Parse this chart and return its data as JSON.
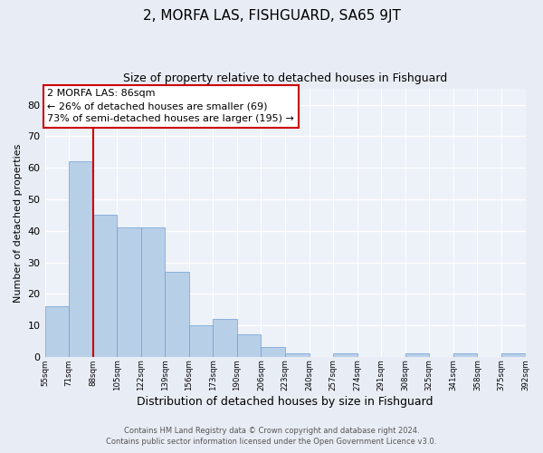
{
  "title": "2, MORFA LAS, FISHGUARD, SA65 9JT",
  "subtitle": "Size of property relative to detached houses in Fishguard",
  "xlabel": "Distribution of detached houses by size in Fishguard",
  "ylabel": "Number of detached properties",
  "bar_values": [
    16,
    62,
    45,
    41,
    41,
    27,
    10,
    12,
    7,
    3,
    1,
    0,
    1,
    0,
    0,
    1,
    0,
    1,
    0,
    1
  ],
  "bin_labels": [
    "55sqm",
    "71sqm",
    "88sqm",
    "105sqm",
    "122sqm",
    "139sqm",
    "156sqm",
    "173sqm",
    "190sqm",
    "206sqm",
    "223sqm",
    "240sqm",
    "257sqm",
    "274sqm",
    "291sqm",
    "308sqm",
    "325sqm",
    "341sqm",
    "358sqm",
    "375sqm",
    "392sqm"
  ],
  "bar_color": "#b8cfe8",
  "bar_edge_color": "#6a9fd8",
  "vline_x_index": 2,
  "vline_color": "#cc0000",
  "annotation_title": "2 MORFA LAS: 86sqm",
  "annotation_line1": "← 26% of detached houses are smaller (69)",
  "annotation_line2": "73% of semi-detached houses are larger (195) →",
  "annotation_box_edgecolor": "#cc0000",
  "ylim": [
    0,
    85
  ],
  "yticks": [
    0,
    10,
    20,
    30,
    40,
    50,
    60,
    70,
    80
  ],
  "footer1": "Contains HM Land Registry data © Crown copyright and database right 2024.",
  "footer2": "Contains public sector information licensed under the Open Government Licence v3.0.",
  "bg_color": "#e8edf5",
  "plot_bg_color": "#edf1f8",
  "grid_color": "#ffffff",
  "title_fontsize": 11,
  "subtitle_fontsize": 9,
  "xlabel_fontsize": 9,
  "ylabel_fontsize": 8
}
